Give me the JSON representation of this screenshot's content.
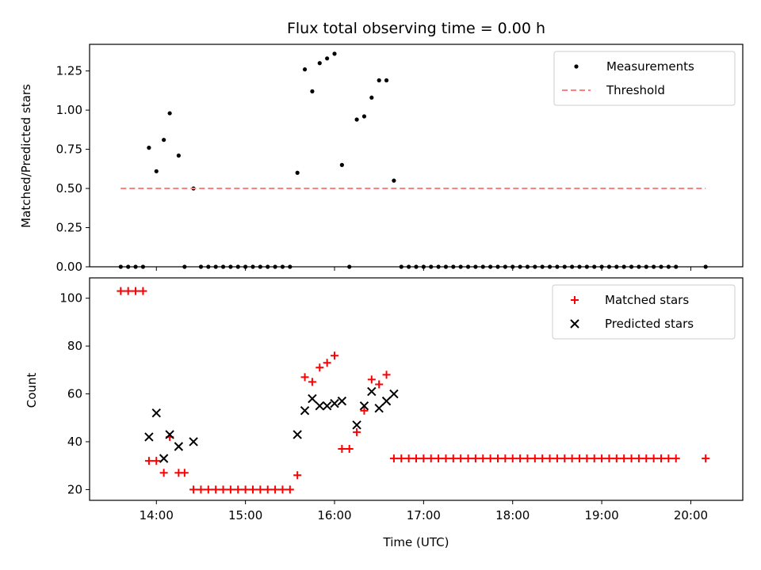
{
  "figure": {
    "title": "Flux total observing time = 0.00 h"
  },
  "chart_data": [
    {
      "type": "scatter",
      "ylabel": "Matched/Predicted stars",
      "xlabel": "",
      "ylim": [
        0,
        1.42
      ],
      "yticks": [
        0,
        0.25,
        0.5,
        0.75,
        1.0,
        1.25
      ],
      "ytick_labels": [
        "0.00",
        "0.25",
        "0.50",
        "0.75",
        "1.00",
        "1.25"
      ],
      "legend_position": "top-right",
      "grid": false,
      "series": [
        {
          "name": "Measurements",
          "style": "dot",
          "color": "#000000",
          "points": [
            [
              "13:36",
              0
            ],
            [
              "13:41",
              0
            ],
            [
              "13:46",
              0
            ],
            [
              "13:51",
              0
            ],
            [
              "13:55",
              0.76
            ],
            [
              "14:00",
              0.61
            ],
            [
              "14:05",
              0.81
            ],
            [
              "14:09",
              0.98
            ],
            [
              "14:15",
              0.71
            ],
            [
              "14:19",
              0
            ],
            [
              "14:25",
              0.5
            ],
            [
              "14:30",
              0
            ],
            [
              "14:35",
              0
            ],
            [
              "14:40",
              0
            ],
            [
              "14:45",
              0
            ],
            [
              "14:50",
              0
            ],
            [
              "14:55",
              0
            ],
            [
              "15:00",
              0
            ],
            [
              "15:05",
              0
            ],
            [
              "15:10",
              0
            ],
            [
              "15:15",
              0
            ],
            [
              "15:20",
              0
            ],
            [
              "15:25",
              0
            ],
            [
              "15:30",
              0
            ],
            [
              "15:35",
              0.6
            ],
            [
              "15:40",
              1.26
            ],
            [
              "15:45",
              1.12
            ],
            [
              "15:50",
              1.3
            ],
            [
              "15:55",
              1.33
            ],
            [
              "16:00",
              1.36
            ],
            [
              "16:05",
              0.65
            ],
            [
              "16:10",
              0
            ],
            [
              "16:15",
              0.94
            ],
            [
              "16:20",
              0.96
            ],
            [
              "16:25",
              1.08
            ],
            [
              "16:30",
              1.19
            ],
            [
              "16:35",
              1.19
            ],
            [
              "16:40",
              0.55
            ],
            [
              "16:45",
              0
            ],
            [
              "16:50",
              0
            ],
            [
              "16:55",
              0
            ],
            [
              "17:00",
              0
            ],
            [
              "17:05",
              0
            ],
            [
              "17:10",
              0
            ],
            [
              "17:15",
              0
            ],
            [
              "17:20",
              0
            ],
            [
              "17:25",
              0
            ],
            [
              "17:30",
              0
            ],
            [
              "17:35",
              0
            ],
            [
              "17:40",
              0
            ],
            [
              "17:45",
              0
            ],
            [
              "17:50",
              0
            ],
            [
              "17:55",
              0
            ],
            [
              "18:00",
              0
            ],
            [
              "18:05",
              0
            ],
            [
              "18:10",
              0
            ],
            [
              "18:15",
              0
            ],
            [
              "18:20",
              0
            ],
            [
              "18:25",
              0
            ],
            [
              "18:30",
              0
            ],
            [
              "18:35",
              0
            ],
            [
              "18:40",
              0
            ],
            [
              "18:45",
              0
            ],
            [
              "18:50",
              0
            ],
            [
              "18:55",
              0
            ],
            [
              "19:00",
              0
            ],
            [
              "19:05",
              0
            ],
            [
              "19:10",
              0
            ],
            [
              "19:15",
              0
            ],
            [
              "19:20",
              0
            ],
            [
              "19:25",
              0
            ],
            [
              "19:30",
              0
            ],
            [
              "19:35",
              0
            ],
            [
              "19:40",
              0
            ],
            [
              "19:45",
              0
            ],
            [
              "19:50",
              0
            ],
            [
              "20:10",
              0
            ]
          ]
        },
        {
          "name": "Threshold",
          "style": "dashed-line",
          "color": "#ff7f7f",
          "points": [
            [
              "13:36",
              0.5
            ],
            [
              "20:10",
              0.5
            ]
          ]
        }
      ]
    },
    {
      "type": "scatter",
      "ylabel": "Count",
      "xlabel": "Time (UTC)",
      "ylim": [
        15.5,
        108.5
      ],
      "yticks": [
        20,
        40,
        60,
        80,
        100
      ],
      "ytick_labels": [
        "20",
        "40",
        "60",
        "80",
        "100"
      ],
      "xlim": [
        "13:15",
        "20:35"
      ],
      "xticks": [
        "14:00",
        "15:00",
        "16:00",
        "17:00",
        "18:00",
        "19:00",
        "20:00"
      ],
      "xtick_labels": [
        "14:00",
        "15:00",
        "16:00",
        "17:00",
        "18:00",
        "19:00",
        "20:00"
      ],
      "legend_position": "top-right",
      "grid": false,
      "series": [
        {
          "name": "Matched stars",
          "style": "plus",
          "color": "#ff0000",
          "points": [
            [
              "13:36",
              103
            ],
            [
              "13:41",
              103
            ],
            [
              "13:46",
              103
            ],
            [
              "13:51",
              103
            ],
            [
              "13:55",
              32
            ],
            [
              "14:00",
              32
            ],
            [
              "14:05",
              27
            ],
            [
              "14:09",
              42
            ],
            [
              "14:15",
              27
            ],
            [
              "14:19",
              27
            ],
            [
              "14:25",
              20
            ],
            [
              "14:30",
              20
            ],
            [
              "14:35",
              20
            ],
            [
              "14:40",
              20
            ],
            [
              "14:45",
              20
            ],
            [
              "14:50",
              20
            ],
            [
              "14:55",
              20
            ],
            [
              "15:00",
              20
            ],
            [
              "15:05",
              20
            ],
            [
              "15:10",
              20
            ],
            [
              "15:15",
              20
            ],
            [
              "15:20",
              20
            ],
            [
              "15:25",
              20
            ],
            [
              "15:30",
              20
            ],
            [
              "15:35",
              26
            ],
            [
              "15:40",
              67
            ],
            [
              "15:45",
              65
            ],
            [
              "15:50",
              71
            ],
            [
              "15:55",
              73
            ],
            [
              "16:00",
              76
            ],
            [
              "16:05",
              37
            ],
            [
              "16:10",
              37
            ],
            [
              "16:15",
              44
            ],
            [
              "16:20",
              53
            ],
            [
              "16:25",
              66
            ],
            [
              "16:30",
              64
            ],
            [
              "16:35",
              68
            ],
            [
              "16:40",
              33
            ],
            [
              "16:45",
              33
            ],
            [
              "16:50",
              33
            ],
            [
              "16:55",
              33
            ],
            [
              "17:00",
              33
            ],
            [
              "17:05",
              33
            ],
            [
              "17:10",
              33
            ],
            [
              "17:15",
              33
            ],
            [
              "17:20",
              33
            ],
            [
              "17:25",
              33
            ],
            [
              "17:30",
              33
            ],
            [
              "17:35",
              33
            ],
            [
              "17:40",
              33
            ],
            [
              "17:45",
              33
            ],
            [
              "17:50",
              33
            ],
            [
              "17:55",
              33
            ],
            [
              "18:00",
              33
            ],
            [
              "18:05",
              33
            ],
            [
              "18:10",
              33
            ],
            [
              "18:15",
              33
            ],
            [
              "18:20",
              33
            ],
            [
              "18:25",
              33
            ],
            [
              "18:30",
              33
            ],
            [
              "18:35",
              33
            ],
            [
              "18:40",
              33
            ],
            [
              "18:45",
              33
            ],
            [
              "18:50",
              33
            ],
            [
              "18:55",
              33
            ],
            [
              "19:00",
              33
            ],
            [
              "19:05",
              33
            ],
            [
              "19:10",
              33
            ],
            [
              "19:15",
              33
            ],
            [
              "19:20",
              33
            ],
            [
              "19:25",
              33
            ],
            [
              "19:30",
              33
            ],
            [
              "19:35",
              33
            ],
            [
              "19:40",
              33
            ],
            [
              "19:45",
              33
            ],
            [
              "19:50",
              33
            ],
            [
              "20:10",
              33
            ]
          ]
        },
        {
          "name": "Predicted stars",
          "style": "cross",
          "color": "#000000",
          "points": [
            [
              "13:55",
              42
            ],
            [
              "14:00",
              52
            ],
            [
              "14:05",
              33
            ],
            [
              "14:09",
              43
            ],
            [
              "14:15",
              38
            ],
            [
              "14:25",
              40
            ],
            [
              "15:35",
              43
            ],
            [
              "15:40",
              53
            ],
            [
              "15:45",
              58
            ],
            [
              "15:50",
              55
            ],
            [
              "15:55",
              55
            ],
            [
              "16:00",
              56
            ],
            [
              "16:05",
              57
            ],
            [
              "16:15",
              47
            ],
            [
              "16:20",
              55
            ],
            [
              "16:25",
              61
            ],
            [
              "16:30",
              54
            ],
            [
              "16:35",
              57
            ],
            [
              "16:40",
              60
            ]
          ]
        }
      ]
    }
  ]
}
